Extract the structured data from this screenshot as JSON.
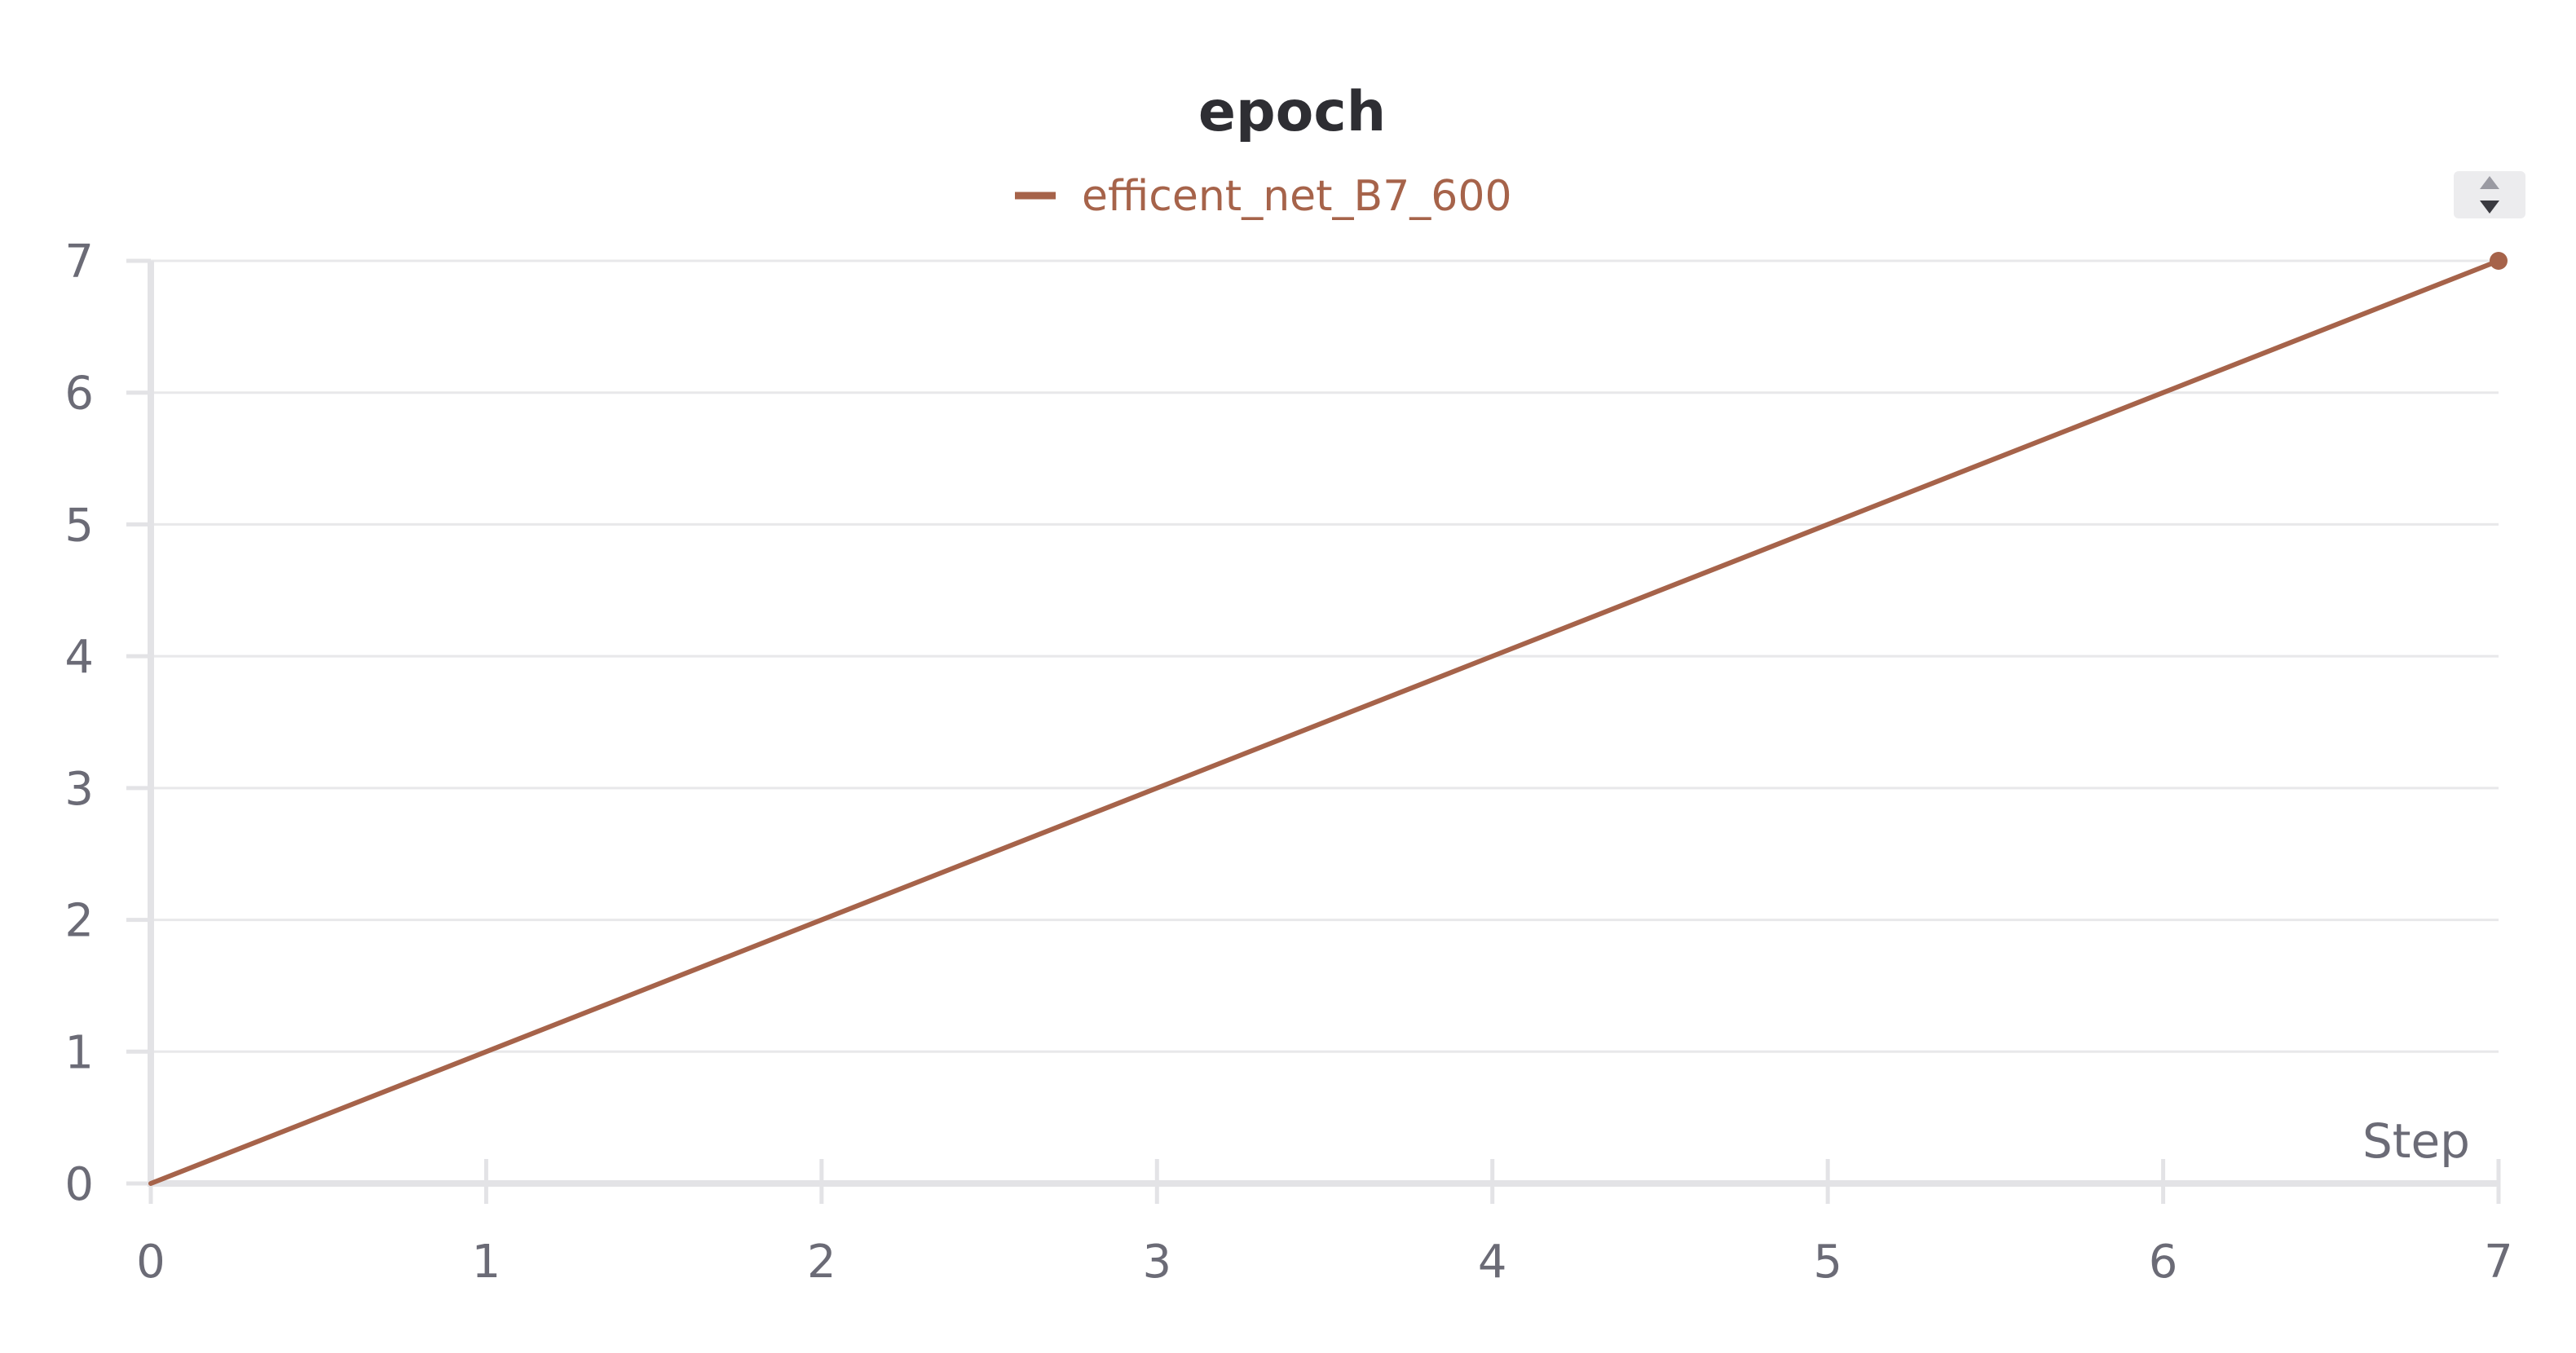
{
  "chart_data": {
    "type": "line",
    "title": "epoch",
    "xlabel": "Step",
    "ylabel": "",
    "x": [
      0,
      1,
      2,
      3,
      4,
      5,
      6,
      7
    ],
    "series": [
      {
        "name": "efficent_net_B7_600",
        "color": "#a6634a",
        "values": [
          0,
          1,
          2,
          3,
          4,
          5,
          6,
          7
        ]
      }
    ],
    "xlim": [
      0,
      7
    ],
    "ylim": [
      0,
      7
    ],
    "xticks": [
      "0",
      "1",
      "2",
      "3",
      "4",
      "5",
      "6",
      "7"
    ],
    "yticks": [
      "0",
      "1",
      "2",
      "3",
      "4",
      "5",
      "6",
      "7"
    ],
    "grid": true,
    "legend_position": "top-center"
  },
  "legend_sort_icon": "sort-up-down-icon"
}
